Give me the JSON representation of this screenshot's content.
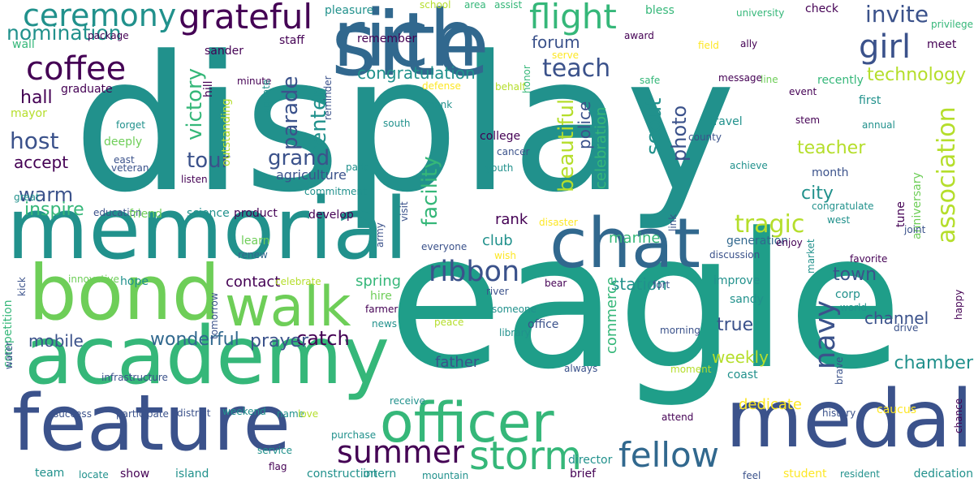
{
  "palette": {
    "purple": "#440154",
    "indigo": "#3b528b",
    "blue": "#31688e",
    "teal": "#21918c",
    "sea": "#1f9e89",
    "green": "#35b779",
    "lime": "#6ece58",
    "yellowgreen": "#b5de2b",
    "yellow": "#fde725"
  },
  "words": [
    {
      "text": "display",
      "color": "teal"
    },
    {
      "text": "eagle",
      "color": "sea"
    },
    {
      "text": "memorial",
      "color": "teal"
    },
    {
      "text": "site",
      "color": "blue"
    },
    {
      "text": "rich",
      "color": "blue"
    },
    {
      "text": "academy",
      "color": "green"
    },
    {
      "text": "feature",
      "color": "indigo"
    },
    {
      "text": "medal",
      "color": "indigo"
    },
    {
      "text": "bond",
      "color": "lime"
    },
    {
      "text": "chat",
      "color": "blue"
    },
    {
      "text": "officer",
      "color": "green"
    },
    {
      "text": "walk",
      "color": "lime"
    },
    {
      "text": "storm",
      "color": "green"
    },
    {
      "text": "fellow",
      "color": "blue"
    },
    {
      "text": "flight",
      "color": "green"
    },
    {
      "text": "grateful",
      "color": "purple"
    },
    {
      "text": "coffee",
      "color": "purple"
    },
    {
      "text": "ceremony",
      "color": "teal"
    },
    {
      "text": "nomination",
      "color": "teal"
    },
    {
      "text": "girl",
      "color": "indigo"
    },
    {
      "text": "invite",
      "color": "indigo"
    },
    {
      "text": "association",
      "color": "yellowgreen"
    },
    {
      "text": "ribbon",
      "color": "indigo"
    },
    {
      "text": "summer",
      "color": "purple"
    },
    {
      "text": "navy",
      "color": "indigo"
    },
    {
      "text": "tragic",
      "color": "yellowgreen"
    },
    {
      "text": "teach",
      "color": "indigo"
    },
    {
      "text": "congratulation",
      "color": "teal"
    },
    {
      "text": "forum",
      "color": "indigo"
    },
    {
      "text": "victory",
      "color": "green"
    },
    {
      "text": "parade",
      "color": "indigo"
    },
    {
      "text": "center",
      "color": "teal"
    },
    {
      "text": "grand",
      "color": "indigo"
    },
    {
      "text": "tour",
      "color": "indigo"
    },
    {
      "text": "host",
      "color": "indigo"
    },
    {
      "text": "warm",
      "color": "indigo"
    },
    {
      "text": "hall",
      "color": "purple"
    },
    {
      "text": "accept",
      "color": "purple"
    },
    {
      "text": "inspire",
      "color": "green"
    },
    {
      "text": "beautiful",
      "color": "yellowgreen"
    },
    {
      "text": "facility",
      "color": "green"
    },
    {
      "text": "scout",
      "color": "teal"
    },
    {
      "text": "photo",
      "color": "indigo"
    },
    {
      "text": "police",
      "color": "indigo"
    },
    {
      "text": "celebration",
      "color": "green"
    },
    {
      "text": "technology",
      "color": "yellowgreen"
    },
    {
      "text": "teacher",
      "color": "yellowgreen"
    },
    {
      "text": "city",
      "color": "teal"
    },
    {
      "text": "town",
      "color": "indigo"
    },
    {
      "text": "channel",
      "color": "indigo"
    },
    {
      "text": "catch",
      "color": "purple"
    },
    {
      "text": "mobile",
      "color": "indigo"
    },
    {
      "text": "wonderful",
      "color": "blue"
    },
    {
      "text": "prayer",
      "color": "indigo"
    },
    {
      "text": "true",
      "color": "indigo"
    },
    {
      "text": "weekly",
      "color": "yellowgreen"
    },
    {
      "text": "chamber",
      "color": "teal"
    },
    {
      "text": "station",
      "color": "teal"
    },
    {
      "text": "spring",
      "color": "green"
    },
    {
      "text": "contact",
      "color": "purple"
    },
    {
      "text": "rank",
      "color": "purple"
    },
    {
      "text": "club",
      "color": "teal"
    },
    {
      "text": "marine",
      "color": "green"
    },
    {
      "text": "father",
      "color": "indigo"
    },
    {
      "text": "dedicate",
      "color": "yellow"
    },
    {
      "text": "commerce",
      "color": "green"
    },
    {
      "text": "agriculture",
      "color": "indigo"
    },
    {
      "text": "pleasure",
      "color": "teal"
    },
    {
      "text": "school",
      "color": "yellowgreen"
    },
    {
      "text": "area",
      "color": "green"
    },
    {
      "text": "assist",
      "color": "green"
    },
    {
      "text": "bless",
      "color": "green"
    },
    {
      "text": "university",
      "color": "green"
    },
    {
      "text": "check",
      "color": "purple"
    },
    {
      "text": "privilege",
      "color": "green"
    },
    {
      "text": "meet",
      "color": "purple"
    },
    {
      "text": "award",
      "color": "purple"
    },
    {
      "text": "field",
      "color": "yellow"
    },
    {
      "text": "ally",
      "color": "purple"
    },
    {
      "text": "wall",
      "color": "green"
    },
    {
      "text": "package",
      "color": "purple"
    },
    {
      "text": "sander",
      "color": "purple"
    },
    {
      "text": "staff",
      "color": "purple"
    },
    {
      "text": "remember",
      "color": "purple"
    },
    {
      "text": "serve",
      "color": "yellow"
    },
    {
      "text": "minute",
      "color": "purple"
    },
    {
      "text": "update",
      "color": "teal"
    },
    {
      "text": "reminder",
      "color": "indigo"
    },
    {
      "text": "defense",
      "color": "yellow"
    },
    {
      "text": "behalf",
      "color": "yellowgreen"
    },
    {
      "text": "honor",
      "color": "green"
    },
    {
      "text": "safe",
      "color": "green"
    },
    {
      "text": "message",
      "color": "purple"
    },
    {
      "text": "line",
      "color": "lime"
    },
    {
      "text": "recently",
      "color": "green"
    },
    {
      "text": "event",
      "color": "purple"
    },
    {
      "text": "first",
      "color": "teal"
    },
    {
      "text": "mayor",
      "color": "yellowgreen"
    },
    {
      "text": "graduate",
      "color": "purple"
    },
    {
      "text": "hill",
      "color": "purple"
    },
    {
      "text": "outstanding",
      "color": "yellowgreen"
    },
    {
      "text": "thank",
      "color": "teal"
    },
    {
      "text": "south",
      "color": "teal"
    },
    {
      "text": "travel",
      "color": "teal"
    },
    {
      "text": "stem",
      "color": "purple"
    },
    {
      "text": "annual",
      "color": "teal"
    },
    {
      "text": "forget",
      "color": "teal"
    },
    {
      "text": "deeply",
      "color": "lime"
    },
    {
      "text": "county",
      "color": "indigo"
    },
    {
      "text": "east",
      "color": "indigo"
    },
    {
      "text": "veteran",
      "color": "indigo"
    },
    {
      "text": "cancer",
      "color": "indigo"
    },
    {
      "text": "youth",
      "color": "teal"
    },
    {
      "text": "college",
      "color": "purple"
    },
    {
      "text": "park",
      "color": "teal"
    },
    {
      "text": "achieve",
      "color": "teal"
    },
    {
      "text": "month",
      "color": "indigo"
    },
    {
      "text": "great",
      "color": "teal"
    },
    {
      "text": "listen",
      "color": "purple"
    },
    {
      "text": "commitment",
      "color": "teal"
    },
    {
      "text": "visit",
      "color": "indigo"
    },
    {
      "text": "anniversary",
      "color": "lime"
    },
    {
      "text": "congratulate",
      "color": "teal"
    },
    {
      "text": "education",
      "color": "indigo"
    },
    {
      "text": "friend",
      "color": "lime"
    },
    {
      "text": "science",
      "color": "teal"
    },
    {
      "text": "product",
      "color": "purple"
    },
    {
      "text": "develop",
      "color": "purple"
    },
    {
      "text": "disaster",
      "color": "yellow"
    },
    {
      "text": "link",
      "color": "indigo"
    },
    {
      "text": "tune",
      "color": "purple"
    },
    {
      "text": "west",
      "color": "teal"
    },
    {
      "text": "learn",
      "color": "lime"
    },
    {
      "text": "army",
      "color": "indigo"
    },
    {
      "text": "everyone",
      "color": "indigo"
    },
    {
      "text": "wish",
      "color": "yellow"
    },
    {
      "text": "generation",
      "color": "blue"
    },
    {
      "text": "enjoy",
      "color": "purple"
    },
    {
      "text": "joint",
      "color": "indigo"
    },
    {
      "text": "renew",
      "color": "blue"
    },
    {
      "text": "discussion",
      "color": "indigo"
    },
    {
      "text": "favorite",
      "color": "purple"
    },
    {
      "text": "market",
      "color": "teal"
    },
    {
      "text": "innovative",
      "color": "lime"
    },
    {
      "text": "hope",
      "color": "teal"
    },
    {
      "text": "celebrate",
      "color": "yellowgreen"
    },
    {
      "text": "bear",
      "color": "purple"
    },
    {
      "text": "fort",
      "color": "indigo"
    },
    {
      "text": "improve",
      "color": "teal"
    },
    {
      "text": "competition",
      "color": "green"
    },
    {
      "text": "kick",
      "color": "indigo"
    },
    {
      "text": "tomorrow",
      "color": "indigo"
    },
    {
      "text": "hire",
      "color": "lime"
    },
    {
      "text": "river",
      "color": "indigo"
    },
    {
      "text": "corp",
      "color": "teal"
    },
    {
      "text": "sandy",
      "color": "teal"
    },
    {
      "text": "happy",
      "color": "purple"
    },
    {
      "text": "farmer",
      "color": "purple"
    },
    {
      "text": "someone",
      "color": "teal"
    },
    {
      "text": "world",
      "color": "teal"
    },
    {
      "text": "news",
      "color": "teal"
    },
    {
      "text": "peace",
      "color": "yellowgreen"
    },
    {
      "text": "office",
      "color": "indigo"
    },
    {
      "text": "library",
      "color": "teal"
    },
    {
      "text": "morning",
      "color": "indigo"
    },
    {
      "text": "drive",
      "color": "indigo"
    },
    {
      "text": "water",
      "color": "indigo"
    },
    {
      "text": "infrastructure",
      "color": "indigo"
    },
    {
      "text": "always",
      "color": "indigo"
    },
    {
      "text": "moment",
      "color": "yellowgreen"
    },
    {
      "text": "coast",
      "color": "teal"
    },
    {
      "text": "brave",
      "color": "indigo"
    },
    {
      "text": "success",
      "color": "indigo"
    },
    {
      "text": "participate",
      "color": "indigo"
    },
    {
      "text": "district",
      "color": "indigo"
    },
    {
      "text": "weekend",
      "color": "teal"
    },
    {
      "text": "name",
      "color": "teal"
    },
    {
      "text": "love",
      "color": "yellowgreen"
    },
    {
      "text": "purchase",
      "color": "teal"
    },
    {
      "text": "receive",
      "color": "teal"
    },
    {
      "text": "attend",
      "color": "purple"
    },
    {
      "text": "caucus",
      "color": "yellow"
    },
    {
      "text": "history",
      "color": "indigo"
    },
    {
      "text": "chance",
      "color": "purple"
    },
    {
      "text": "service",
      "color": "teal"
    },
    {
      "text": "flag",
      "color": "purple"
    },
    {
      "text": "team",
      "color": "teal"
    },
    {
      "text": "locate",
      "color": "teal"
    },
    {
      "text": "show",
      "color": "purple"
    },
    {
      "text": "island",
      "color": "teal"
    },
    {
      "text": "construction",
      "color": "teal"
    },
    {
      "text": "intern",
      "color": "teal"
    },
    {
      "text": "mountain",
      "color": "teal"
    },
    {
      "text": "director",
      "color": "teal"
    },
    {
      "text": "brief",
      "color": "purple"
    },
    {
      "text": "feel",
      "color": "indigo"
    },
    {
      "text": "student",
      "color": "yellow"
    },
    {
      "text": "resident",
      "color": "teal"
    },
    {
      "text": "dedication",
      "color": "teal"
    },
    {
      "text": "outside",
      "color": "yellowgreen"
    }
  ]
}
